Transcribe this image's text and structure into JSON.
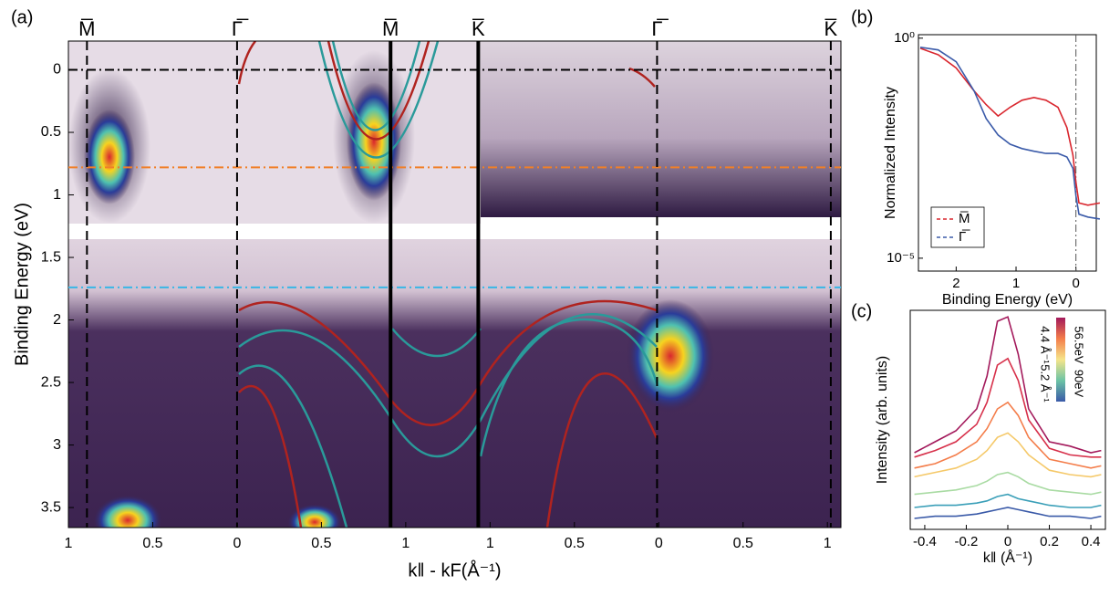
{
  "chart_data": [
    {
      "type": "heatmap",
      "panel_label": "(a)",
      "xlabel": "k‖ - kF(Å⁻¹)",
      "ylabel": "Binding Energy (eV)",
      "xlim": [
        0,
        4.58
      ],
      "ylim": [
        -0.23,
        3.66
      ],
      "y_reversed": true,
      "xticks": [
        {
          "value": 0,
          "label": "1"
        },
        {
          "value": 0.5,
          "label": "0.5"
        },
        {
          "value": 1,
          "label": "0"
        },
        {
          "value": 1.5,
          "label": "0.5"
        },
        {
          "value": 2,
          "label": "1"
        },
        {
          "value": 2.5,
          "label": "1"
        },
        {
          "value": 3,
          "label": "0.5"
        },
        {
          "value": 3.5,
          "label": "0"
        },
        {
          "value": 4,
          "label": "0.5"
        },
        {
          "value": 4.5,
          "label": "1"
        }
      ],
      "yticks": [
        0,
        0.5,
        1,
        1.5,
        2,
        2.5,
        3,
        3.5
      ],
      "symmetry_points": [
        {
          "label": "M̅",
          "x": 0.11,
          "color": "#d9262e",
          "style": "dashed"
        },
        {
          "label": "Γ̅",
          "x": 1,
          "color": "#3b5ba9",
          "style": "dashed"
        },
        {
          "label": "M̅",
          "x": 1.91,
          "color": "#d9262e",
          "style": "solid"
        },
        {
          "label": "K̅",
          "x": 2.43,
          "color": "#000000",
          "style": "solid"
        },
        {
          "label": "Γ̅",
          "x": 3.49,
          "color": "#3b5ba9",
          "style": "dashed"
        },
        {
          "label": "K̅",
          "x": 4.52,
          "color": "#000000",
          "style": "dashed"
        }
      ],
      "reference_lines": [
        {
          "value": 0,
          "color": "#000000"
        },
        {
          "value": 0.78,
          "color": "#f07f28"
        },
        {
          "value": 1.74,
          "color": "#39b6e6"
        }
      ]
    },
    {
      "type": "line",
      "panel_label": "(b)",
      "xlabel": "Binding Energy (eV)",
      "ylabel": "Normalized Intensity",
      "xlim": [
        2.63,
        -0.34
      ],
      "ylim": [
        5.1e-06,
        1.2
      ],
      "log_y": true,
      "xticks": [
        2,
        1,
        0
      ],
      "yticks": [
        {
          "value": 1,
          "label": "10⁰"
        },
        {
          "value": 1e-05,
          "label": "10⁻⁵"
        }
      ],
      "vline": 0,
      "legend": "lower left",
      "x": [
        2.6,
        2.3,
        2.0,
        1.7,
        1.5,
        1.3,
        1.1,
        0.9,
        0.7,
        0.5,
        0.3,
        0.15,
        0.05,
        0,
        -0.05,
        -0.2,
        -0.4
      ],
      "series": [
        {
          "name": "M̅",
          "color": "#d9262e",
          "values": [
            0.59,
            0.42,
            0.21,
            0.063,
            0.031,
            0.017,
            0.027,
            0.039,
            0.045,
            0.039,
            0.027,
            0.0093,
            0.0022,
            0.00053,
            0.00018,
            0.00016,
            0.00018
          ]
        },
        {
          "name": "Γ̅",
          "color": "#3b5ba9",
          "values": [
            0.62,
            0.54,
            0.29,
            0.063,
            0.015,
            0.0063,
            0.0039,
            0.0031,
            0.0027,
            0.0024,
            0.0024,
            0.002,
            0.0011,
            0.00026,
            0.0001,
            8.6e-05,
            7.8e-05
          ]
        }
      ]
    },
    {
      "type": "line",
      "panel_label": "(c)",
      "xlabel": "k‖ (Å⁻¹)",
      "ylabel": "Intensity (arb. units)",
      "xlim": [
        -0.47,
        0.47
      ],
      "ylim": [
        0,
        1
      ],
      "xticks": [
        -0.4,
        -0.2,
        0,
        0.2,
        0.4
      ],
      "colorbar_labels": [
        "56.5eV",
        "90eV",
        "4.4 Å⁻¹",
        "5.2 Å⁻¹"
      ],
      "x": [
        -0.45,
        -0.35,
        -0.25,
        -0.15,
        -0.1,
        -0.05,
        0,
        0.05,
        0.1,
        0.2,
        0.3,
        0.4,
        0.45
      ],
      "series": [
        {
          "color": "#a3195b",
          "values": [
            0.35,
            0.4,
            0.45,
            0.55,
            0.7,
            0.95,
            0.97,
            0.8,
            0.55,
            0.4,
            0.38,
            0.35,
            0.36
          ]
        },
        {
          "color": "#d7304a",
          "values": [
            0.33,
            0.36,
            0.4,
            0.48,
            0.58,
            0.75,
            0.78,
            0.68,
            0.5,
            0.37,
            0.34,
            0.33,
            0.33
          ]
        },
        {
          "color": "#f47d4a",
          "values": [
            0.28,
            0.3,
            0.34,
            0.4,
            0.46,
            0.55,
            0.58,
            0.52,
            0.42,
            0.32,
            0.3,
            0.28,
            0.29
          ]
        },
        {
          "color": "#f5c96a",
          "values": [
            0.24,
            0.26,
            0.28,
            0.32,
            0.36,
            0.42,
            0.44,
            0.4,
            0.34,
            0.27,
            0.25,
            0.24,
            0.25
          ]
        },
        {
          "color": "#a9dba3",
          "values": [
            0.16,
            0.17,
            0.18,
            0.2,
            0.22,
            0.25,
            0.26,
            0.24,
            0.21,
            0.18,
            0.17,
            0.16,
            0.17
          ]
        },
        {
          "color": "#3a9fb8",
          "values": [
            0.1,
            0.11,
            0.11,
            0.12,
            0.13,
            0.15,
            0.16,
            0.14,
            0.13,
            0.11,
            0.1,
            0.1,
            0.11
          ]
        },
        {
          "color": "#3a5aa8",
          "values": [
            0.05,
            0.06,
            0.06,
            0.07,
            0.08,
            0.09,
            0.1,
            0.09,
            0.08,
            0.06,
            0.06,
            0.05,
            0.06
          ]
        }
      ]
    }
  ]
}
